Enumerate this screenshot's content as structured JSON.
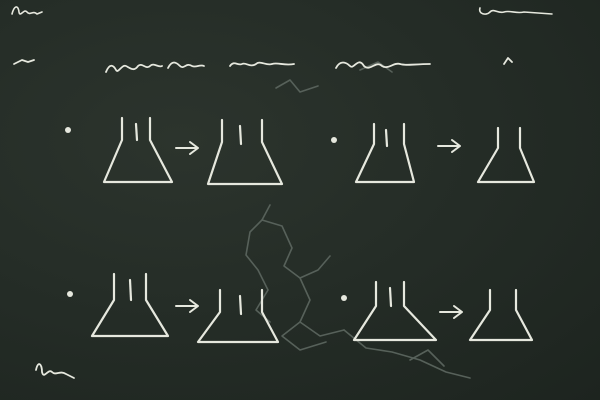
{
  "scene": {
    "subject": "chalkboard",
    "background_color": "#242c26",
    "chalk_color": "#e6e8de",
    "ghost_chalk_color": "#57615a"
  },
  "diagram": {
    "rows": 2,
    "pairs_per_row": 2,
    "item": "flask",
    "connector": "arrow",
    "marker": "bullet"
  }
}
